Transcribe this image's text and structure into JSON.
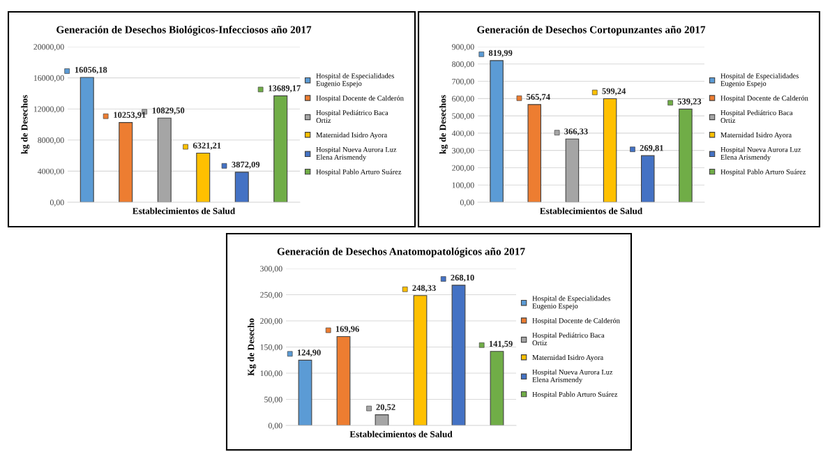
{
  "chart_data": [
    {
      "type": "bar",
      "title": "Generación de Desechos Biológicos-Infecciosos año 2017",
      "xlabel": "Establecimientos de Salud",
      "ylabel": "kg de Desechos",
      "categories": [
        null
      ],
      "ylim": [
        0,
        20000
      ],
      "yticks": [
        {
          "value": 0,
          "label": "0,00"
        },
        {
          "value": 4000,
          "label": "4000,00"
        },
        {
          "value": 8000,
          "label": "8000,00"
        },
        {
          "value": 12000,
          "label": "12000,00"
        },
        {
          "value": 16000,
          "label": "16000,00"
        },
        {
          "value": 20000,
          "label": "20000,00"
        }
      ],
      "grid": "y",
      "legend": "right",
      "series": [
        {
          "name": "Hospital de Especialidades Eugenio Espejo",
          "color": "#5b9bd5",
          "values": [
            16056.18
          ],
          "value_labels": [
            "16056,18"
          ]
        },
        {
          "name": "Hospital Docente de Calderón",
          "color": "#ed7d31",
          "values": [
            10253.91
          ],
          "value_labels": [
            "10253,91"
          ]
        },
        {
          "name": "Hospital Pediátrico Baca Ortiz",
          "color": "#a5a5a5",
          "values": [
            10829.5
          ],
          "value_labels": [
            "10829,50"
          ]
        },
        {
          "name": "Maternidad Isidro Ayora",
          "color": "#ffc000",
          "values": [
            6321.21
          ],
          "value_labels": [
            "6321,21"
          ]
        },
        {
          "name": "Hospital Nueva Aurora Luz Elena Arismendy",
          "color": "#4472c4",
          "values": [
            3872.09
          ],
          "value_labels": [
            "3872,09"
          ]
        },
        {
          "name": "Hospital Pablo Arturo Suárez",
          "color": "#70ad47",
          "values": [
            13689.17
          ],
          "value_labels": [
            "13689,17"
          ]
        }
      ]
    },
    {
      "type": "bar",
      "title": "Generación de Desechos Cortopunzantes año 2017",
      "xlabel": "Establecimientos de Salud",
      "ylabel": "kg de Desechos",
      "categories": [
        null
      ],
      "ylim": [
        0,
        900
      ],
      "yticks": [
        {
          "value": 0,
          "label": "0,00"
        },
        {
          "value": 100,
          "label": "100,00"
        },
        {
          "value": 200,
          "label": "200,00"
        },
        {
          "value": 300,
          "label": "300,00"
        },
        {
          "value": 400,
          "label": "400,00"
        },
        {
          "value": 500,
          "label": "500,00"
        },
        {
          "value": 600,
          "label": "600,00"
        },
        {
          "value": 700,
          "label": "700,00"
        },
        {
          "value": 800,
          "label": "800,00"
        },
        {
          "value": 900,
          "label": "900,00"
        }
      ],
      "grid": "y",
      "legend": "right",
      "series": [
        {
          "name": "Hospital de Especialidades Eugenio Espejo",
          "color": "#5b9bd5",
          "values": [
            819.99
          ],
          "value_labels": [
            "819,99"
          ]
        },
        {
          "name": "Hospital Docente de Calderón",
          "color": "#ed7d31",
          "values": [
            565.74
          ],
          "value_labels": [
            "565,74"
          ]
        },
        {
          "name": "Hospital Pediátrico Baca Ortiz",
          "color": "#a5a5a5",
          "values": [
            366.33
          ],
          "value_labels": [
            "366,33"
          ]
        },
        {
          "name": "Maternidad Isidro Ayora",
          "color": "#ffc000",
          "values": [
            599.24
          ],
          "value_labels": [
            "599,24"
          ]
        },
        {
          "name": "Hospital Nueva Aurora Luz Elena Arismendy",
          "color": "#4472c4",
          "values": [
            269.81
          ],
          "value_labels": [
            "269,81"
          ]
        },
        {
          "name": "Hospital Pablo Arturo Suárez",
          "color": "#70ad47",
          "values": [
            539.23
          ],
          "value_labels": [
            "539,23"
          ]
        }
      ]
    },
    {
      "type": "bar",
      "title": "Generación de Desechos Anatomopatológicos año 2017",
      "xlabel": "Establecimientos de Salud",
      "ylabel": "Kg de Desecho",
      "categories": [
        null
      ],
      "ylim": [
        0,
        300
      ],
      "yticks": [
        {
          "value": 0,
          "label": "0,00"
        },
        {
          "value": 50,
          "label": "50,00"
        },
        {
          "value": 100,
          "label": "100,00"
        },
        {
          "value": 150,
          "label": "150,00"
        },
        {
          "value": 200,
          "label": "200,00"
        },
        {
          "value": 250,
          "label": "250,00"
        },
        {
          "value": 300,
          "label": "300,00"
        }
      ],
      "grid": "y",
      "legend": "right",
      "series": [
        {
          "name": "Hospital de Especialidades Eugenio Espejo",
          "color": "#5b9bd5",
          "values": [
            124.9
          ],
          "value_labels": [
            "124,90"
          ]
        },
        {
          "name": "Hospital Docente de Calderón",
          "color": "#ed7d31",
          "values": [
            169.96
          ],
          "value_labels": [
            "169,96"
          ]
        },
        {
          "name": "Hospital Pediátrico Baca Ortiz",
          "color": "#a5a5a5",
          "values": [
            20.52
          ],
          "value_labels": [
            "20,52"
          ]
        },
        {
          "name": "Maternidad Isidro Ayora",
          "color": "#ffc000",
          "values": [
            248.33
          ],
          "value_labels": [
            "248,33"
          ]
        },
        {
          "name": "Hospital Nueva Aurora Luz Elena Arismendy",
          "color": "#4472c4",
          "values": [
            268.1
          ],
          "value_labels": [
            "268,10"
          ]
        },
        {
          "name": "Hospital Pablo Arturo Suárez",
          "color": "#70ad47",
          "values": [
            141.59
          ],
          "value_labels": [
            "141,59"
          ]
        }
      ]
    }
  ]
}
